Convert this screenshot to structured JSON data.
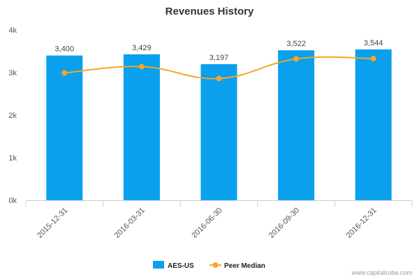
{
  "chart_data": {
    "type": "bar",
    "title": "Revenues History",
    "categories": [
      "2015-12-31",
      "2016-03-31",
      "2016-06-30",
      "2016-09-30",
      "2016-12-31"
    ],
    "series": [
      {
        "name": "AES-US",
        "type": "bar",
        "color": "#0aa0ee",
        "values": [
          3400,
          3429,
          3197,
          3522,
          3544
        ],
        "data_labels": [
          "3,400",
          "3,429",
          "3,197",
          "3,522",
          "3,544"
        ]
      },
      {
        "name": "Peer Median",
        "type": "line",
        "color": "#f5a623",
        "values": [
          2990,
          3140,
          2860,
          3320,
          3330
        ]
      }
    ],
    "ylim": [
      0,
      4000
    ],
    "yticks": [
      0,
      1000,
      2000,
      3000,
      4000
    ],
    "ytick_labels": [
      "0k",
      "1k",
      "2k",
      "3k",
      "4k"
    ],
    "grid": false,
    "legend_position": "bottom"
  },
  "credit": "www.capitalcube.com"
}
